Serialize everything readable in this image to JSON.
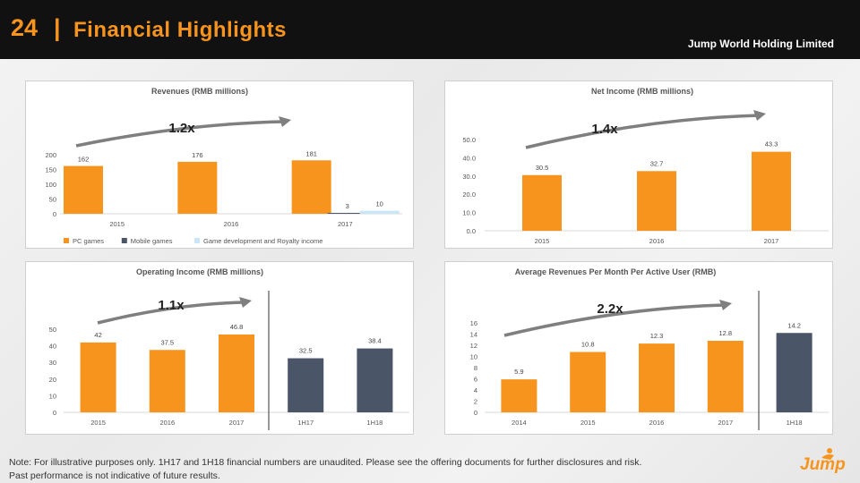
{
  "header": {
    "slide_number": "24",
    "separator": "|",
    "title": "Financial Highlights",
    "company": "Jump World Holding Limited"
  },
  "colors": {
    "orange": "#F7941D",
    "navy": "#4A5568",
    "light_blue": "#C9E6F7",
    "header_bg": "#111111",
    "arrow": "#7F7F7F"
  },
  "chart_data": [
    {
      "id": "revenues",
      "type": "bar",
      "title": "Revenues    (RMB millions)",
      "categories": [
        "2015",
        "2016",
        "2017"
      ],
      "series": [
        {
          "name": "PC games",
          "color": "#F7941D",
          "values": [
            162,
            176,
            181
          ],
          "labels": [
            "162",
            "176",
            "181"
          ]
        },
        {
          "name": "Mobile games",
          "color": "#4A5568",
          "values": [
            0,
            0,
            3
          ],
          "labels": [
            "",
            "",
            "3"
          ]
        },
        {
          "name": "Game development and Royalty income",
          "color": "#C9E6F7",
          "values": [
            0,
            0,
            10
          ],
          "labels": [
            "",
            "",
            "10"
          ]
        }
      ],
      "ylim": [
        0,
        200
      ],
      "yticks": [
        "0",
        "50",
        "100",
        "150",
        "200"
      ],
      "growth": "1.2x",
      "legend": "bottom"
    },
    {
      "id": "net-income",
      "type": "bar",
      "title": "Net Income     (RMB millions)",
      "categories": [
        "2015",
        "2016",
        "2017"
      ],
      "values": [
        30.5,
        32.7,
        43.3
      ],
      "labels": [
        "30.5",
        "32.7",
        "43.3"
      ],
      "ylim": [
        0,
        50
      ],
      "yticks": [
        "0.0",
        "10.0",
        "20.0",
        "30.0",
        "40.0",
        "50.0"
      ],
      "growth": "1.4x"
    },
    {
      "id": "operating-income",
      "type": "bar",
      "title": "Operating Income     (RMB millions)",
      "categories": [
        "2015",
        "2016",
        "2017",
        "1H17",
        "1H18"
      ],
      "values": [
        42,
        37.5,
        46.8,
        32.5,
        38.4
      ],
      "labels": [
        "42",
        "37.5",
        "46.8",
        "32.5",
        "38.4"
      ],
      "colors": [
        "#F7941D",
        "#F7941D",
        "#F7941D",
        "#4A5568",
        "#4A5568"
      ],
      "ylim": [
        0,
        50
      ],
      "yticks": [
        "0",
        "10",
        "20",
        "30",
        "40",
        "50"
      ],
      "growth": "1.1x"
    },
    {
      "id": "arpu",
      "type": "bar",
      "title": "Average Revenues Per Month Per Active User     (RMB)",
      "categories": [
        "2014",
        "2015",
        "2016",
        "2017",
        "1H18"
      ],
      "values": [
        5.9,
        10.8,
        12.3,
        12.8,
        14.2
      ],
      "labels": [
        "5.9",
        "10.8",
        "12.3",
        "12.8",
        "14.2"
      ],
      "colors": [
        "#F7941D",
        "#F7941D",
        "#F7941D",
        "#F7941D",
        "#4A5568"
      ],
      "ylim": [
        0,
        16
      ],
      "yticks": [
        "0",
        "2",
        "4",
        "6",
        "8",
        "10",
        "12",
        "14",
        "16"
      ],
      "growth": "2.2x"
    }
  ],
  "footer": {
    "note_line1": "Note:  For illustrative purposes only.  1H17 and 1H18 financial numbers are unaudited. Please see the offering documents for further disclosures and risk.",
    "note_line2": "Past performance is not indicative of future results.",
    "logo_text": "Jump"
  }
}
